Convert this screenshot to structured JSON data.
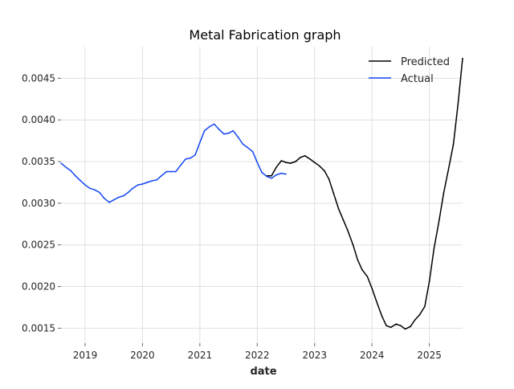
{
  "chart_data": {
    "type": "line",
    "title": "Metal Fabrication graph",
    "xlabel": "date",
    "ylabel": "",
    "xlim": [
      2018.58,
      2025.58
    ],
    "ylim": [
      0.00132,
      0.00488
    ],
    "x_ticks": [
      2019,
      2020,
      2021,
      2022,
      2023,
      2024,
      2025
    ],
    "x_tick_labels": [
      "2019",
      "2020",
      "2021",
      "2022",
      "2023",
      "2024",
      "2025"
    ],
    "y_ticks": [
      0.0015,
      0.002,
      0.0025,
      0.003,
      0.0035,
      0.004,
      0.0045
    ],
    "y_tick_labels": [
      "0.0015",
      "0.0020",
      "0.0025",
      "0.0030",
      "0.0035",
      "0.0040",
      "0.0045"
    ],
    "grid": true,
    "legend_position": "top-right",
    "series": [
      {
        "name": "Predicted",
        "color": "#000000",
        "x": [
          2022.17,
          2022.25,
          2022.33,
          2022.42,
          2022.5,
          2022.58,
          2022.67,
          2022.75,
          2022.83,
          2022.92,
          2023.0,
          2023.08,
          2023.17,
          2023.25,
          2023.33,
          2023.42,
          2023.5,
          2023.58,
          2023.67,
          2023.75,
          2023.83,
          2023.92,
          2024.0,
          2024.08,
          2024.17,
          2024.25,
          2024.33,
          2024.42,
          2024.5,
          2024.58,
          2024.67,
          2024.75,
          2024.83,
          2024.92,
          2025.0,
          2025.08,
          2025.17,
          2025.25,
          2025.33,
          2025.42,
          2025.5,
          2025.58
        ],
        "values": [
          0.00333,
          0.00333,
          0.00343,
          0.00351,
          0.00349,
          0.00348,
          0.0035,
          0.00355,
          0.00357,
          0.00353,
          0.00349,
          0.00345,
          0.00339,
          0.00329,
          0.00312,
          0.00293,
          0.0028,
          0.00267,
          0.0025,
          0.00232,
          0.0022,
          0.00212,
          0.00198,
          0.00182,
          0.00165,
          0.00153,
          0.00151,
          0.00155,
          0.00153,
          0.00149,
          0.00152,
          0.0016,
          0.00166,
          0.00176,
          0.00206,
          0.00245,
          0.00279,
          0.00312,
          0.00339,
          0.00371,
          0.00419,
          0.00474
        ]
      },
      {
        "name": "Actual",
        "color": "#1447f2",
        "x": [
          2018.58,
          2018.67,
          2018.75,
          2018.83,
          2018.92,
          2019.0,
          2019.08,
          2019.17,
          2019.25,
          2019.33,
          2019.42,
          2019.5,
          2019.58,
          2019.67,
          2019.75,
          2019.83,
          2019.92,
          2020.0,
          2020.08,
          2020.17,
          2020.25,
          2020.33,
          2020.42,
          2020.5,
          2020.58,
          2020.67,
          2020.75,
          2020.83,
          2020.92,
          2021.0,
          2021.08,
          2021.17,
          2021.25,
          2021.33,
          2021.42,
          2021.5,
          2021.58,
          2021.67,
          2021.75,
          2021.83,
          2021.92,
          2022.0,
          2022.08,
          2022.17,
          2022.25,
          2022.33,
          2022.42,
          2022.5
        ],
        "values": [
          0.00348,
          0.00343,
          0.00339,
          0.00333,
          0.00327,
          0.00322,
          0.00318,
          0.00316,
          0.00313,
          0.00306,
          0.00301,
          0.00304,
          0.00307,
          0.00309,
          0.00313,
          0.00318,
          0.00322,
          0.00323,
          0.00325,
          0.00327,
          0.00328,
          0.00333,
          0.00338,
          0.00338,
          0.00338,
          0.00346,
          0.00353,
          0.00354,
          0.00358,
          0.00373,
          0.00387,
          0.00392,
          0.00395,
          0.00389,
          0.00383,
          0.00384,
          0.00387,
          0.00379,
          0.00371,
          0.00367,
          0.00362,
          0.00349,
          0.00337,
          0.00332,
          0.0033,
          0.00334,
          0.00336,
          0.00335
        ]
      }
    ]
  }
}
